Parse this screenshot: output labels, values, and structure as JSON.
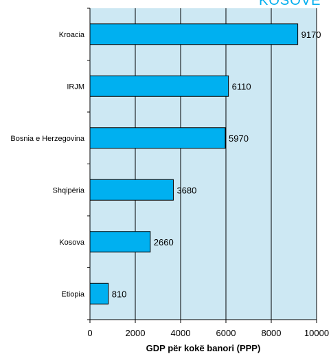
{
  "corner_text": "KOSOVE",
  "colors": {
    "plot_background": "#cde8f3",
    "bar_fill": "#00b0f0",
    "bar_stroke": "#000000",
    "grid": "#000000",
    "corner_text": "#00aeef"
  },
  "chart_data": {
    "type": "bar",
    "orientation": "horizontal",
    "categories": [
      "Kroacia",
      "IRJM",
      "Bosnia e Herzegovina",
      "Shqipëria",
      "Kosova",
      "Etiopia"
    ],
    "values": [
      9170,
      6110,
      5970,
      3680,
      2660,
      810
    ],
    "value_labels": [
      "9170",
      "6110",
      "5970",
      "3680",
      "2660",
      "810"
    ],
    "xlabel": "GDP për kokë banori (PPP)",
    "ylabel": "",
    "xlim": [
      0,
      10000
    ],
    "xticks": [
      0,
      2000,
      4000,
      6000,
      8000,
      10000
    ],
    "xtick_labels": [
      "0",
      "2000",
      "4000",
      "6000",
      "8000",
      "10000"
    ],
    "grid": "vertical"
  }
}
